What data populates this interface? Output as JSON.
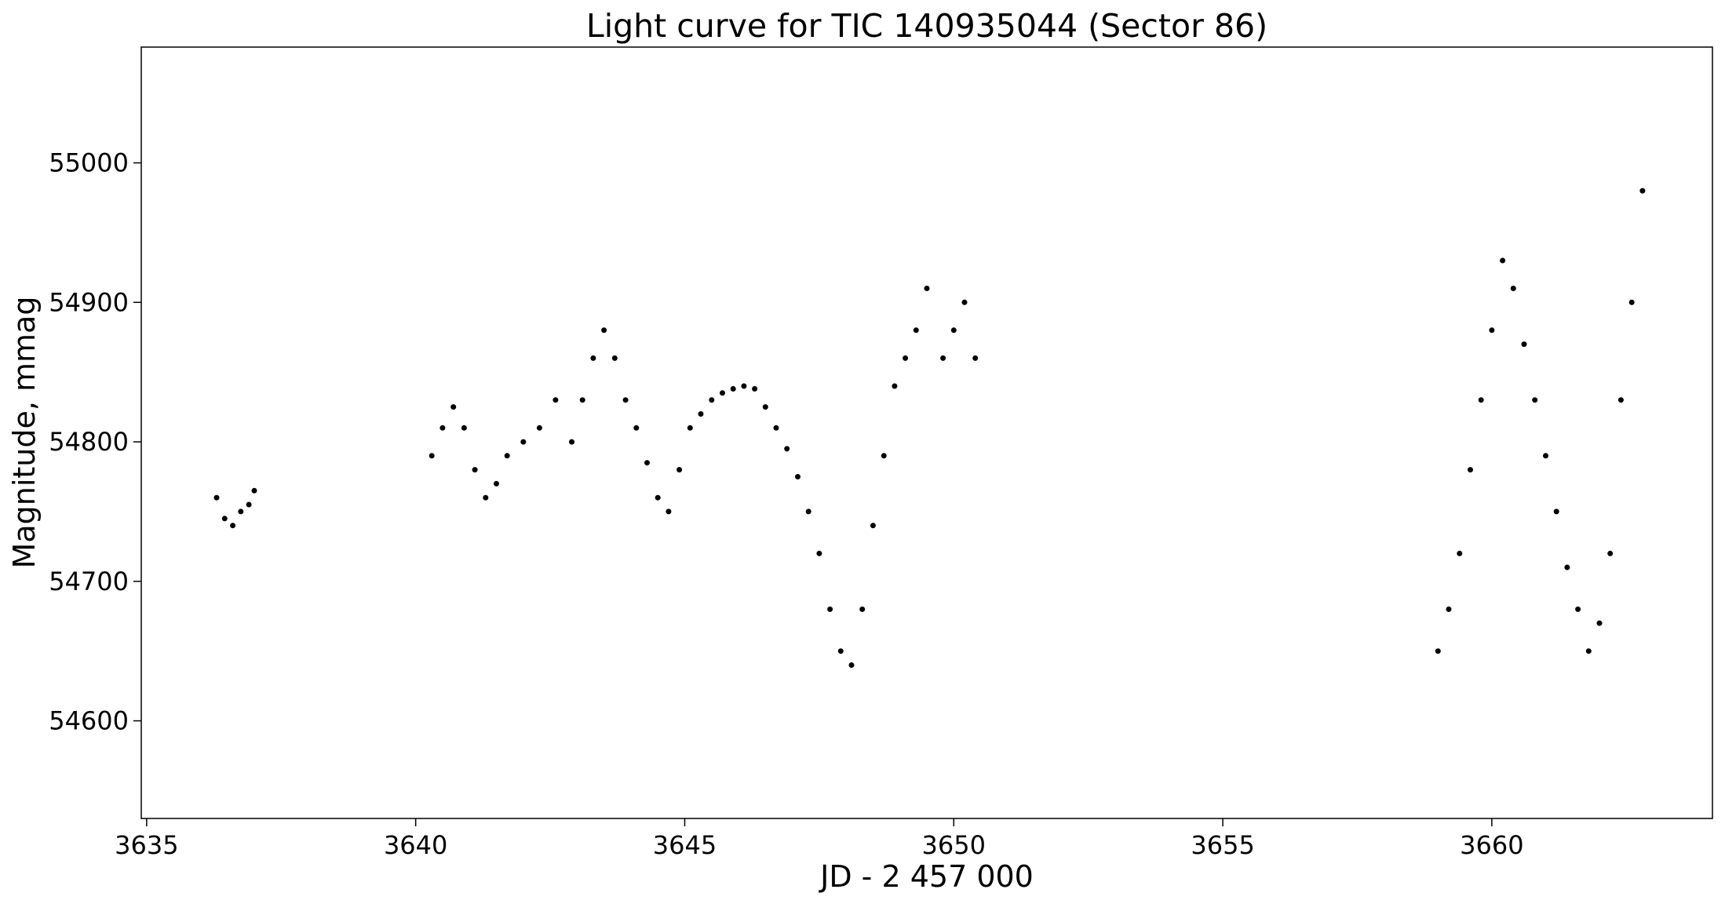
{
  "chart_data": {
    "type": "scatter",
    "title": "Light curve for TIC 140935044 (Sector 86)",
    "xlabel": "JD - 2 457 000",
    "ylabel": "Magnitude, mmag",
    "xlim": [
      3634.9,
      3664.1
    ],
    "ylim": [
      54530,
      55083
    ],
    "x_ticks": [
      3635,
      3640,
      3645,
      3650,
      3655,
      3660
    ],
    "x_tick_labels": [
      "3635",
      "3640",
      "3645",
      "3650",
      "3655",
      "3660"
    ],
    "y_ticks": [
      54600,
      54700,
      54800,
      54900,
      55000
    ],
    "y_tick_labels": [
      "54600",
      "54700",
      "54800",
      "54900",
      "55000"
    ],
    "grid": false,
    "marker_color": "#000000",
    "series": [
      {
        "x": [
          3636.3,
          3636.45,
          3636.6,
          3636.75,
          3636.9,
          3637.0,
          3640.3,
          3640.5,
          3640.7,
          3640.9,
          3641.1,
          3641.3,
          3641.5,
          3641.7,
          3642.0,
          3642.3,
          3642.6,
          3642.9,
          3643.1,
          3643.3,
          3643.5,
          3643.7,
          3643.9,
          3644.1,
          3644.3,
          3644.5,
          3644.7,
          3644.9,
          3645.1,
          3645.3,
          3645.5,
          3645.7,
          3645.9,
          3646.1,
          3646.3,
          3646.5,
          3646.7,
          3646.9,
          3647.1,
          3647.3,
          3647.5,
          3647.7,
          3647.9,
          3648.1,
          3648.3,
          3648.5,
          3648.7,
          3648.9,
          3649.1,
          3649.3,
          3649.5,
          3649.8,
          3650.0,
          3650.2,
          3650.4,
          3659.0,
          3659.2,
          3659.4,
          3659.6,
          3659.8,
          3660.0,
          3660.2,
          3660.4,
          3660.6,
          3660.8,
          3661.0,
          3661.2,
          3661.4,
          3661.6,
          3661.8,
          3662.0,
          3662.2,
          3662.4,
          3662.6,
          3662.8
        ],
        "y": [
          54760,
          54745,
          54740,
          54750,
          54755,
          54765,
          54790,
          54810,
          54825,
          54810,
          54780,
          54760,
          54770,
          54790,
          54800,
          54810,
          54830,
          54800,
          54830,
          54860,
          54880,
          54860,
          54830,
          54810,
          54785,
          54760,
          54750,
          54780,
          54810,
          54820,
          54830,
          54835,
          54838,
          54840,
          54838,
          54825,
          54810,
          54795,
          54775,
          54750,
          54720,
          54680,
          54650,
          54640,
          54680,
          54740,
          54790,
          54840,
          54860,
          54880,
          54910,
          54860,
          54880,
          54900,
          54860,
          54650,
          54680,
          54720,
          54780,
          54830,
          54880,
          54930,
          54910,
          54870,
          54830,
          54790,
          54750,
          54710,
          54680,
          54650,
          54670,
          54720,
          54830,
          54900,
          54980
        ]
      }
    ]
  }
}
